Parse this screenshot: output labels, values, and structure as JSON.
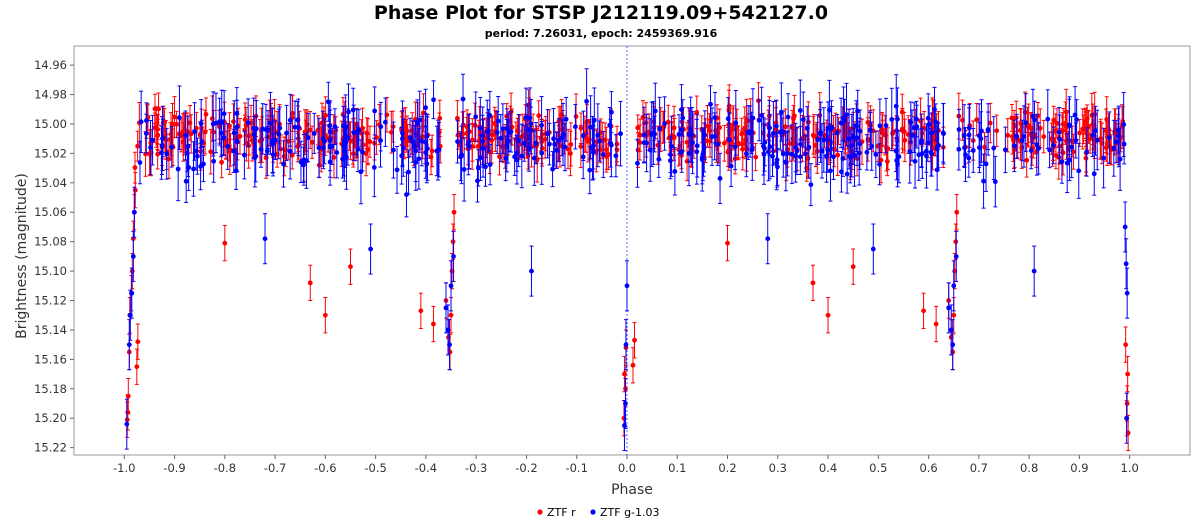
{
  "chart_data": {
    "type": "scatter",
    "title": "Phase Plot for STSP J212119.09+542127.0",
    "subtitle": "period: 7.26031, epoch: 2459369.916",
    "xlabel": "Phase",
    "ylabel": "Brightness (magnitude)",
    "xlim": [
      -1.1,
      1.12
    ],
    "ylim": [
      15.225,
      14.947
    ],
    "y_inverted": true,
    "x_ticks": [
      "-1.0",
      "-0.9",
      "-0.8",
      "-0.7",
      "-0.6",
      "-0.5",
      "-0.4",
      "-0.3",
      "-0.2",
      "-0.1",
      "0.0",
      "0.1",
      "0.2",
      "0.3",
      "0.4",
      "0.5",
      "0.6",
      "0.7",
      "0.8",
      "0.9",
      "1.0"
    ],
    "y_ticks": [
      "14.96",
      "14.98",
      "15.00",
      "15.02",
      "15.04",
      "15.06",
      "15.08",
      "15.10",
      "15.12",
      "15.14",
      "15.16",
      "15.18",
      "15.20",
      "15.22"
    ],
    "grid": false,
    "reference_line_x": 0.0,
    "legend_position": "bottom-center",
    "series": [
      {
        "name": "ZTF r",
        "color": "#ff0000",
        "typical_error": 0.012,
        "baseline": {
          "phase_ranges": [
            [
              -0.98,
              -0.37
            ],
            [
              -0.34,
              -0.01
            ],
            [
              0.02,
              0.63
            ],
            [
              0.66,
              0.99
            ]
          ],
          "mean_mag": 15.008,
          "scatter": 0.013,
          "count": 560
        },
        "points": [
          {
            "x": -0.994,
            "y": 15.201
          },
          {
            "x": -0.993,
            "y": 15.196
          },
          {
            "x": -0.992,
            "y": 15.185
          },
          {
            "x": -0.99,
            "y": 15.155
          },
          {
            "x": -0.989,
            "y": 15.13
          },
          {
            "x": -0.986,
            "y": 15.115
          },
          {
            "x": -0.984,
            "y": 15.1
          },
          {
            "x": -0.982,
            "y": 15.078
          },
          {
            "x": -0.98,
            "y": 15.06
          },
          {
            "x": -0.978,
            "y": 15.045
          },
          {
            "x": -0.975,
            "y": 15.165
          },
          {
            "x": -0.973,
            "y": 15.148
          },
          {
            "x": -0.8,
            "y": 15.081
          },
          {
            "x": -0.63,
            "y": 15.108
          },
          {
            "x": -0.6,
            "y": 15.13
          },
          {
            "x": -0.55,
            "y": 15.097
          },
          {
            "x": -0.41,
            "y": 15.127
          },
          {
            "x": -0.385,
            "y": 15.136
          },
          {
            "x": -0.36,
            "y": 15.12
          },
          {
            "x": -0.355,
            "y": 15.145
          },
          {
            "x": -0.352,
            "y": 15.155
          },
          {
            "x": -0.35,
            "y": 15.13
          },
          {
            "x": -0.348,
            "y": 15.1
          },
          {
            "x": -0.346,
            "y": 15.08
          },
          {
            "x": -0.344,
            "y": 15.06
          },
          {
            "x": -0.006,
            "y": 15.2
          },
          {
            "x": -0.005,
            "y": 15.17
          },
          {
            "x": -0.003,
            "y": 15.18
          },
          {
            "x": -0.002,
            "y": 15.152
          },
          {
            "x": 0.012,
            "y": 15.164
          },
          {
            "x": 0.015,
            "y": 15.147
          },
          {
            "x": 0.2,
            "y": 15.081
          },
          {
            "x": 0.37,
            "y": 15.108
          },
          {
            "x": 0.4,
            "y": 15.13
          },
          {
            "x": 0.45,
            "y": 15.097
          },
          {
            "x": 0.59,
            "y": 15.127
          },
          {
            "x": 0.615,
            "y": 15.136
          },
          {
            "x": 0.64,
            "y": 15.12
          },
          {
            "x": 0.645,
            "y": 15.145
          },
          {
            "x": 0.648,
            "y": 15.155
          },
          {
            "x": 0.65,
            "y": 15.13
          },
          {
            "x": 0.652,
            "y": 15.1
          },
          {
            "x": 0.654,
            "y": 15.08
          },
          {
            "x": 0.656,
            "y": 15.06
          },
          {
            "x": 0.994,
            "y": 15.2
          },
          {
            "x": 0.995,
            "y": 15.19
          },
          {
            "x": 0.996,
            "y": 15.17
          },
          {
            "x": 0.997,
            "y": 15.21
          },
          {
            "x": 0.992,
            "y": 15.15
          }
        ]
      },
      {
        "name": "ZTF g-1.03",
        "color": "#0000ff",
        "typical_error": 0.017,
        "baseline": {
          "phase_ranges": [
            [
              -0.98,
              -0.37
            ],
            [
              -0.34,
              -0.01
            ],
            [
              0.02,
              0.63
            ],
            [
              0.66,
              0.99
            ]
          ],
          "mean_mag": 15.012,
          "scatter": 0.018,
          "count": 430
        },
        "points": [
          {
            "x": -0.995,
            "y": 15.204
          },
          {
            "x": -0.99,
            "y": 15.15
          },
          {
            "x": -0.988,
            "y": 15.13
          },
          {
            "x": -0.985,
            "y": 15.115
          },
          {
            "x": -0.982,
            "y": 15.09
          },
          {
            "x": -0.98,
            "y": 15.06
          },
          {
            "x": -0.72,
            "y": 15.078
          },
          {
            "x": -0.51,
            "y": 15.085
          },
          {
            "x": -0.36,
            "y": 15.125
          },
          {
            "x": -0.356,
            "y": 15.14
          },
          {
            "x": -0.353,
            "y": 15.15
          },
          {
            "x": -0.35,
            "y": 15.11
          },
          {
            "x": -0.345,
            "y": 15.09
          },
          {
            "x": -0.19,
            "y": 15.1
          },
          {
            "x": -0.005,
            "y": 15.205
          },
          {
            "x": -0.003,
            "y": 15.19
          },
          {
            "x": -0.002,
            "y": 15.15
          },
          {
            "x": 0.0,
            "y": 15.11
          },
          {
            "x": 0.28,
            "y": 15.078
          },
          {
            "x": 0.49,
            "y": 15.085
          },
          {
            "x": 0.64,
            "y": 15.125
          },
          {
            "x": 0.645,
            "y": 15.14
          },
          {
            "x": 0.648,
            "y": 15.15
          },
          {
            "x": 0.65,
            "y": 15.11
          },
          {
            "x": 0.655,
            "y": 15.09
          },
          {
            "x": 0.81,
            "y": 15.1
          },
          {
            "x": 0.994,
            "y": 15.2
          },
          {
            "x": 0.995,
            "y": 15.115
          },
          {
            "x": 0.993,
            "y": 15.095
          },
          {
            "x": 0.991,
            "y": 15.07
          }
        ]
      }
    ]
  }
}
